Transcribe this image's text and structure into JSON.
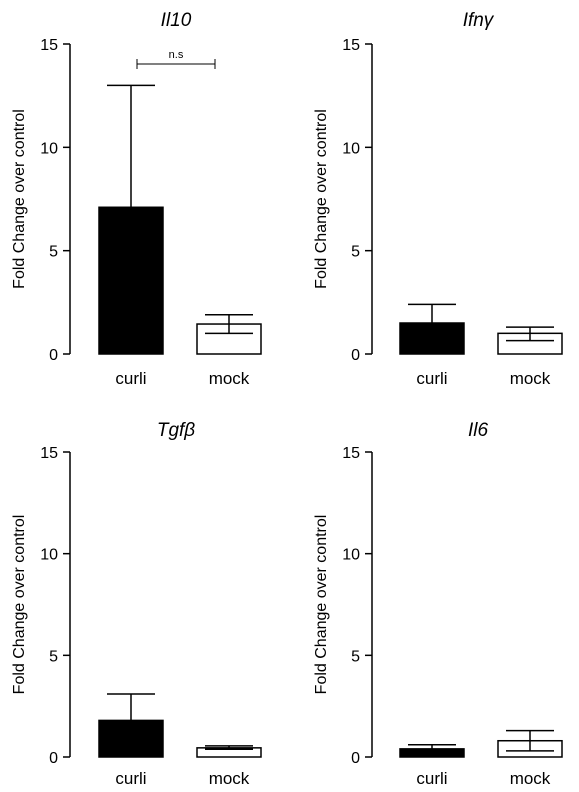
{
  "chart_data": [
    {
      "type": "bar",
      "title": "Il10",
      "ylabel": "Fold Change over control",
      "categories": [
        "curli",
        "mock"
      ],
      "values": [
        7.1,
        1.45
      ],
      "error_upper": [
        13.0,
        1.9
      ],
      "error_lower": [
        7.1,
        1.0
      ],
      "bar_fills": [
        "#000000",
        "#ffffff"
      ],
      "ylim": [
        0,
        15
      ],
      "yticks": [
        "0",
        "5",
        "10",
        "15"
      ],
      "annotation": "n.s"
    },
    {
      "type": "bar",
      "title": "Ifnγ",
      "ylabel": "Fold Change over control",
      "categories": [
        "curli",
        "mock"
      ],
      "values": [
        1.5,
        1.0
      ],
      "error_upper": [
        2.4,
        1.3
      ],
      "error_lower": [
        1.5,
        0.65
      ],
      "bar_fills": [
        "#000000",
        "#ffffff"
      ],
      "ylim": [
        0,
        15
      ],
      "yticks": [
        "0",
        "5",
        "10",
        "15"
      ]
    },
    {
      "type": "bar",
      "title": "Tgfβ",
      "ylabel": "Fold Change over control",
      "categories": [
        "curli",
        "mock"
      ],
      "values": [
        1.8,
        0.45
      ],
      "error_upper": [
        3.1,
        0.55
      ],
      "error_lower": [
        1.8,
        0.38
      ],
      "bar_fills": [
        "#000000",
        "#ffffff"
      ],
      "ylim": [
        0,
        15
      ],
      "yticks": [
        "0",
        "5",
        "10",
        "15"
      ]
    },
    {
      "type": "bar",
      "title": "Il6",
      "ylabel": "Fold Change over control",
      "categories": [
        "curli",
        "mock"
      ],
      "values": [
        0.4,
        0.8
      ],
      "error_upper": [
        0.6,
        1.3
      ],
      "error_lower": [
        0.4,
        0.3
      ],
      "bar_fills": [
        "#000000",
        "#ffffff"
      ],
      "ylim": [
        0,
        15
      ],
      "yticks": [
        "0",
        "5",
        "10",
        "15"
      ]
    }
  ]
}
